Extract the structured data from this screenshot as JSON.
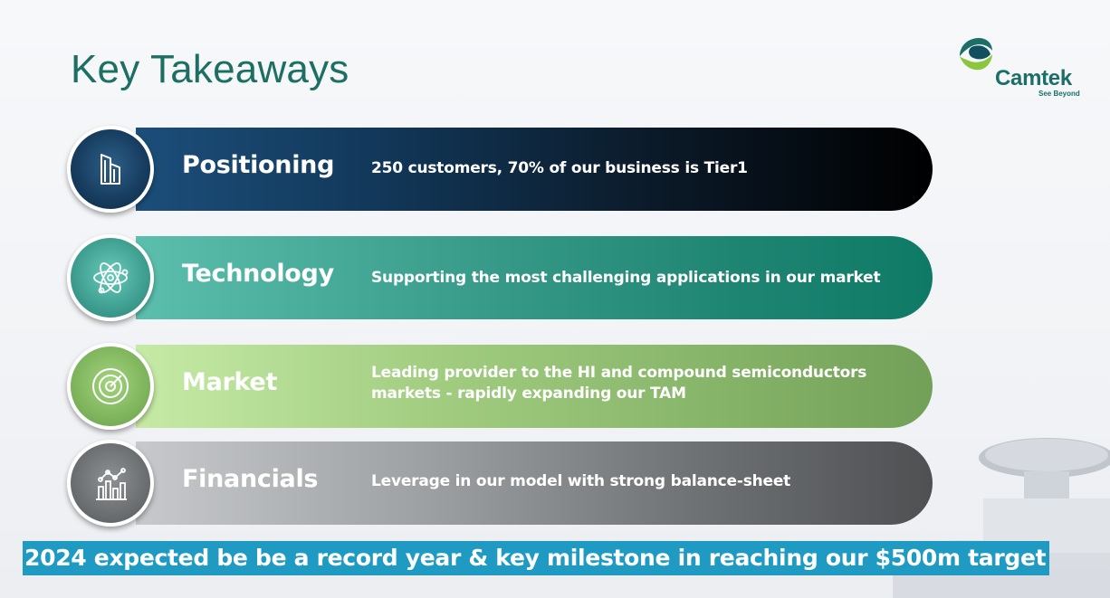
{
  "title": "Key Takeaways",
  "logo": {
    "name": "Camtek",
    "tagline": "See Beyond",
    "icon": "camtek-logo-icon"
  },
  "rows": [
    {
      "label": "Positioning",
      "desc": "250 customers, 70% of our business is Tier1",
      "icon": "buildings-icon"
    },
    {
      "label": "Technology",
      "desc": "Supporting the most challenging applications in our market",
      "icon": "atom-icon"
    },
    {
      "label": "Market",
      "desc": "Leading provider to the HI and compound semiconductors markets - rapidly expanding our TAM",
      "icon": "target-icon"
    },
    {
      "label": "Financials",
      "desc": "Leverage in our model with strong balance-sheet",
      "icon": "bar-chart-icon"
    }
  ],
  "banner": "2024 expected be be a record year & key milestone in reaching our $500m target",
  "colors": {
    "title": "#1d6f63",
    "banner": "#1f9bc3",
    "logo": "#1b6f67"
  }
}
